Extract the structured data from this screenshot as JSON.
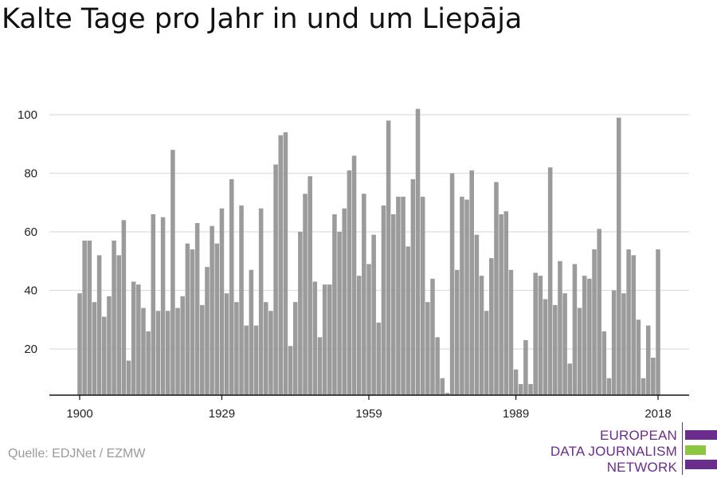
{
  "chart_data": {
    "type": "bar",
    "title": "Kalte Tage pro Jahr in und um Liepāja",
    "xlabel": "",
    "ylabel": "",
    "ylim": [
      5,
      106
    ],
    "xlim": [
      1899.4,
      2018.6
    ],
    "yticks": [
      20,
      40,
      60,
      80,
      100
    ],
    "xticks": [
      1900,
      1929,
      1959,
      1989,
      2018
    ],
    "grid": true,
    "bar_color": "#9b9b9b",
    "x": [
      1900,
      1901,
      1902,
      1903,
      1904,
      1905,
      1906,
      1907,
      1908,
      1909,
      1910,
      1911,
      1912,
      1913,
      1914,
      1915,
      1916,
      1917,
      1918,
      1919,
      1920,
      1921,
      1922,
      1923,
      1924,
      1925,
      1926,
      1927,
      1928,
      1929,
      1930,
      1931,
      1932,
      1933,
      1934,
      1935,
      1936,
      1937,
      1938,
      1939,
      1940,
      1941,
      1942,
      1943,
      1944,
      1945,
      1946,
      1947,
      1948,
      1949,
      1950,
      1951,
      1952,
      1953,
      1954,
      1955,
      1956,
      1957,
      1958,
      1959,
      1960,
      1961,
      1962,
      1963,
      1964,
      1965,
      1966,
      1967,
      1968,
      1969,
      1970,
      1971,
      1972,
      1973,
      1974,
      1975,
      1976,
      1977,
      1978,
      1979,
      1980,
      1981,
      1982,
      1983,
      1984,
      1985,
      1986,
      1987,
      1988,
      1989,
      1990,
      1991,
      1992,
      1993,
      1994,
      1995,
      1996,
      1997,
      1998,
      1999,
      2000,
      2001,
      2002,
      2003,
      2004,
      2005,
      2006,
      2007,
      2008,
      2009,
      2010,
      2011,
      2012,
      2013,
      2014,
      2015,
      2016,
      2017,
      2018
    ],
    "values": [
      39,
      57,
      57,
      36,
      52,
      31,
      38,
      57,
      52,
      64,
      16,
      43,
      42,
      34,
      26,
      66,
      33,
      65,
      33,
      88,
      34,
      38,
      56,
      54,
      63,
      35,
      48,
      62,
      56,
      68,
      39,
      78,
      36,
      69,
      28,
      47,
      28,
      68,
      36,
      33,
      83,
      93,
      94,
      21,
      36,
      60,
      73,
      79,
      43,
      24,
      42,
      42,
      66,
      60,
      68,
      81,
      86,
      45,
      73,
      49,
      59,
      29,
      69,
      98,
      66,
      72,
      72,
      55,
      78,
      102,
      72,
      36,
      44,
      24,
      10,
      5,
      80,
      47,
      72,
      71,
      81,
      59,
      45,
      33,
      51,
      77,
      66,
      67,
      47,
      13,
      8,
      23,
      8,
      46,
      45,
      37,
      82,
      35,
      50,
      39,
      15,
      49,
      34,
      45,
      44,
      54,
      61,
      26,
      10,
      40,
      99,
      39,
      54,
      52,
      30,
      10,
      28,
      17,
      54
    ]
  },
  "source": "Quelle: EDJNet / EZMW",
  "logo": {
    "lines": [
      "EUROPEAN",
      "DATA JOURNALISM",
      "NETWORK"
    ],
    "text_color": "#6b2d8c",
    "bar_colors": [
      "#6b2d8c",
      "#8dc63f",
      "#6b2d8c"
    ]
  }
}
